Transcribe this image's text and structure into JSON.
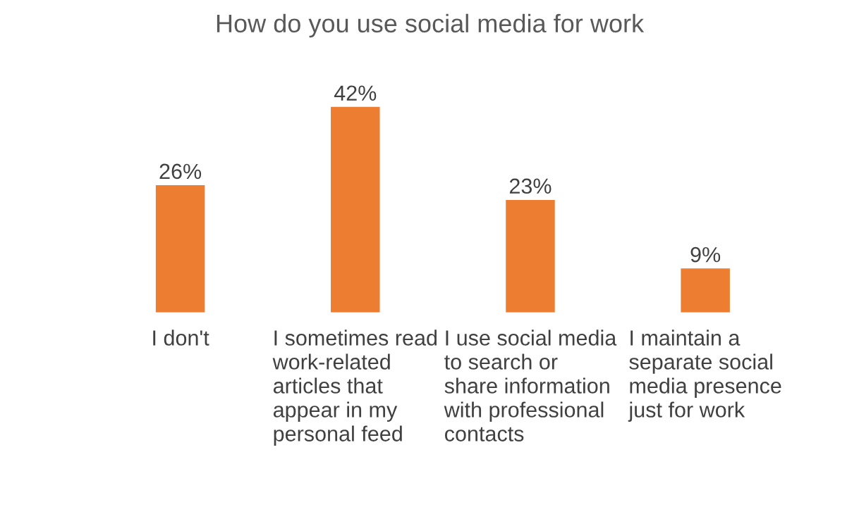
{
  "chart_data": {
    "type": "bar",
    "title": "How do you use social media for work",
    "categories": [
      "I don't",
      "I sometimes read work-related articles that appear in my personal feed",
      "I use social media to search or share information with professional contacts",
      "I maintain a separate social media presence just for work"
    ],
    "values": [
      26,
      42,
      23,
      9
    ],
    "value_labels": [
      "26%",
      "42%",
      "23%",
      "9%"
    ],
    "color": "#ed7d31"
  }
}
